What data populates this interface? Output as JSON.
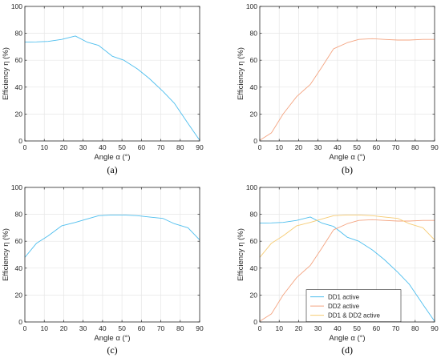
{
  "colors": {
    "dd1": "#4DBEEE",
    "dd2": "#F4A582",
    "both": "#F6CB73"
  },
  "chart_data": [
    {
      "type": "line",
      "panel_label": "(a)",
      "xlabel": "Angle α (°)",
      "ylabel": "Efficiency η (%)",
      "xlim": [
        0,
        90
      ],
      "ylim": [
        0,
        100
      ],
      "xticks": [
        0,
        10,
        20,
        30,
        40,
        50,
        60,
        70,
        80,
        90
      ],
      "yticks": [
        0,
        20,
        40,
        60,
        80,
        100
      ],
      "grid": true,
      "series": [
        {
          "name": "",
          "color_key": "dd1",
          "x": [
            0,
            6,
            12,
            19,
            26,
            32,
            38,
            45,
            51,
            58,
            64,
            71,
            77,
            84,
            90
          ],
          "y": [
            73.5,
            73.6,
            74.0,
            75.5,
            78.0,
            73.5,
            71.0,
            63.0,
            60.0,
            53.5,
            46.5,
            37.0,
            28.0,
            13.0,
            0.5
          ]
        }
      ]
    },
    {
      "type": "line",
      "panel_label": "(b)",
      "xlabel": "Angle α (°)",
      "ylabel": "Efficiency η (%)",
      "xlim": [
        0,
        90
      ],
      "ylim": [
        0,
        100
      ],
      "xticks": [
        0,
        10,
        20,
        30,
        40,
        50,
        60,
        70,
        80,
        90
      ],
      "yticks": [
        0,
        20,
        40,
        60,
        80,
        100
      ],
      "grid": true,
      "series": [
        {
          "name": "",
          "color_key": "dd2",
          "x": [
            0,
            6,
            12,
            19,
            26,
            32,
            38,
            45,
            51,
            58,
            64,
            71,
            77,
            84,
            90
          ],
          "y": [
            0.5,
            6.0,
            20.0,
            33.0,
            42.0,
            55.0,
            68.5,
            73.0,
            75.5,
            76.0,
            75.5,
            75.0,
            75.0,
            75.5,
            75.5
          ]
        }
      ]
    },
    {
      "type": "line",
      "panel_label": "(c)",
      "xlabel": "Angle α (°)",
      "ylabel": "Efficiency η (%)",
      "xlim": [
        0,
        90
      ],
      "ylim": [
        0,
        100
      ],
      "xticks": [
        0,
        10,
        20,
        30,
        40,
        50,
        60,
        70,
        80,
        90
      ],
      "yticks": [
        0,
        20,
        40,
        60,
        80,
        100
      ],
      "grid": true,
      "series": [
        {
          "name": "",
          "color_key": "dd1",
          "x": [
            0,
            6,
            12,
            19,
            26,
            32,
            38,
            45,
            51,
            58,
            64,
            71,
            77,
            84,
            90
          ],
          "y": [
            48.0,
            58.5,
            64.0,
            71.5,
            74.0,
            76.5,
            79.0,
            79.5,
            79.5,
            79.0,
            78.0,
            77.0,
            73.0,
            70.0,
            61.0
          ]
        }
      ]
    },
    {
      "type": "line",
      "panel_label": "(d)",
      "xlabel": "Angle α (°)",
      "ylabel": "Efficiency η (%)",
      "xlim": [
        0,
        90
      ],
      "ylim": [
        0,
        100
      ],
      "xticks": [
        0,
        10,
        20,
        30,
        40,
        50,
        60,
        70,
        80,
        90
      ],
      "yticks": [
        0,
        20,
        40,
        60,
        80,
        100
      ],
      "grid": true,
      "legend": "bottom-center",
      "series": [
        {
          "name": "DD1 active",
          "color_key": "dd1",
          "x": [
            0,
            6,
            12,
            19,
            26,
            32,
            38,
            45,
            51,
            58,
            64,
            71,
            77,
            84,
            90
          ],
          "y": [
            73.5,
            73.6,
            74.0,
            75.5,
            78.0,
            73.5,
            71.0,
            63.0,
            60.0,
            53.5,
            46.5,
            37.0,
            28.0,
            13.0,
            0.5
          ]
        },
        {
          "name": "DD2 active",
          "color_key": "dd2",
          "x": [
            0,
            6,
            12,
            19,
            26,
            32,
            38,
            45,
            51,
            58,
            64,
            71,
            77,
            84,
            90
          ],
          "y": [
            0.5,
            6.0,
            20.0,
            33.0,
            42.0,
            55.0,
            68.5,
            73.0,
            75.5,
            76.0,
            75.5,
            75.0,
            75.0,
            75.5,
            75.5
          ]
        },
        {
          "name": "DD1 & DD2 active",
          "color_key": "both",
          "x": [
            0,
            6,
            12,
            19,
            26,
            32,
            38,
            45,
            51,
            58,
            64,
            71,
            77,
            84,
            90
          ],
          "y": [
            48.0,
            58.5,
            64.0,
            71.5,
            74.0,
            76.5,
            79.0,
            79.5,
            79.5,
            79.0,
            78.0,
            77.0,
            73.0,
            70.0,
            61.0
          ]
        }
      ]
    }
  ]
}
